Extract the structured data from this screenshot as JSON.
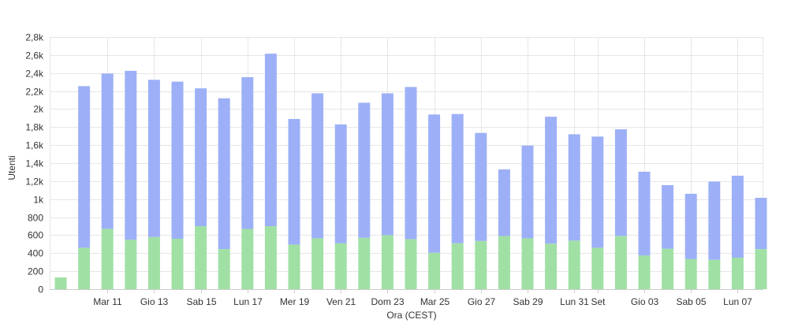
{
  "chart_data": {
    "type": "bar",
    "stacked": true,
    "xlabel": "Ora (CEST)",
    "ylabel": "Utenti",
    "ylim": [
      0,
      2800
    ],
    "yticks": [
      0,
      200,
      400,
      600,
      800,
      1000,
      1200,
      1400,
      1600,
      1800,
      2000,
      2200,
      2400,
      2600,
      2800
    ],
    "ytick_labels": [
      "0",
      "200",
      "400",
      "600",
      "800",
      "1k",
      "1,2k",
      "1,4k",
      "1,6k",
      "1,8k",
      "2k",
      "2,2k",
      "2,4k",
      "2,6k",
      "2,8k"
    ],
    "grid": true,
    "legend": "none",
    "x_tick_labels": [
      {
        "index": 2,
        "label": "Mar 11"
      },
      {
        "index": 4,
        "label": "Gio 13"
      },
      {
        "index": 6,
        "label": "Sab 15"
      },
      {
        "index": 8,
        "label": "Lun 17"
      },
      {
        "index": 10,
        "label": "Mer 19"
      },
      {
        "index": 12,
        "label": "Ven 21"
      },
      {
        "index": 14,
        "label": "Dom 23"
      },
      {
        "index": 16,
        "label": "Mar 25"
      },
      {
        "index": 18,
        "label": "Gio 27"
      },
      {
        "index": 20,
        "label": "Sab 29"
      },
      {
        "index": 22,
        "label": "Lun 31"
      },
      {
        "index": 23,
        "label": "Set"
      },
      {
        "index": 25,
        "label": "Gio 03"
      },
      {
        "index": 27,
        "label": "Sab 05"
      },
      {
        "index": 29,
        "label": "Lun 07"
      }
    ],
    "series": [
      {
        "color": "#a0e0a5",
        "values": [
          130,
          460,
          670,
          550,
          580,
          560,
          700,
          445,
          670,
          700,
          495,
          565,
          510,
          570,
          600,
          555,
          405,
          510,
          535,
          590,
          565,
          505,
          540,
          460,
          590,
          375,
          450,
          335,
          325,
          350,
          445
        ]
      },
      {
        "color": "#9db0f7",
        "values": [
          0,
          1795,
          1725,
          1875,
          1745,
          1745,
          1530,
          1675,
          1685,
          1915,
          1395,
          1610,
          1320,
          1500,
          1575,
          1690,
          1535,
          1435,
          1200,
          740,
          1030,
          1410,
          1180,
          1235,
          1185,
          930,
          705,
          725,
          870,
          910,
          570
        ]
      }
    ]
  }
}
